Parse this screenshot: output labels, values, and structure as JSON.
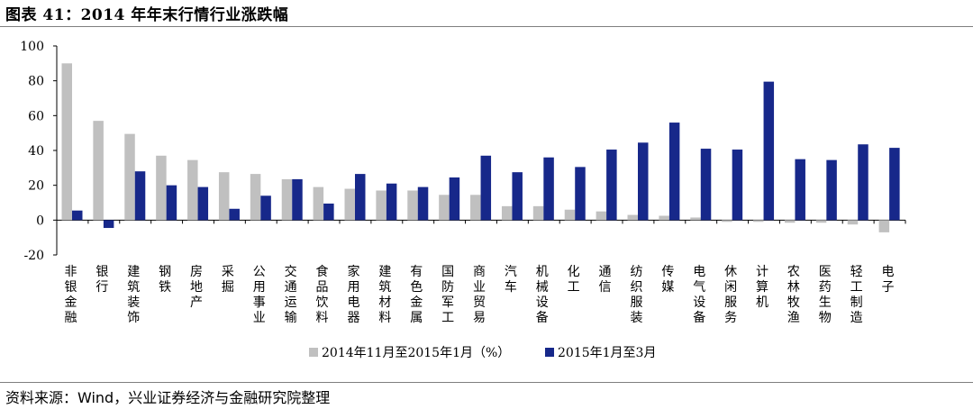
{
  "title": "图表 41：2014 年年末行情行业涨跌幅",
  "source": "资料来源：Wind，兴业证券经济与金融研究院整理",
  "colors": {
    "series1": "#c0c0c0",
    "series2": "#17288a",
    "axis": "#000000"
  },
  "chart_data": {
    "type": "bar",
    "ylim": [
      -20,
      100
    ],
    "yticks": [
      "100",
      "80",
      "60",
      "40",
      "20",
      "0",
      "-20"
    ],
    "ytick_values": [
      100,
      80,
      60,
      40,
      20,
      0,
      -20
    ],
    "grid": false,
    "legend_position": "bottom",
    "categories": [
      "非银金融",
      "银行",
      "建筑装饰",
      "钢铁",
      "房地产",
      "采掘",
      "公用事业",
      "交通运输",
      "食品饮料",
      "家用电器",
      "建筑材料",
      "有色金属",
      "国防军工",
      "商业贸易",
      "汽车",
      "机械设备",
      "化工",
      "通信",
      "纺织服装",
      "传媒",
      "电气设备",
      "休闲服务",
      "计算机",
      "农林牧渔",
      "医药生物",
      "轻工制造",
      "电子"
    ],
    "series": [
      {
        "name": "2014年11月至2015年1月（%）",
        "values": [
          90,
          57,
          49.5,
          37,
          34.5,
          27.5,
          26.5,
          23.5,
          19,
          18,
          17,
          17,
          14.5,
          14.5,
          8,
          8,
          6,
          5,
          3,
          2.5,
          1.5,
          -1,
          -1,
          -1.5,
          -1.5,
          -2.5,
          -7
        ]
      },
      {
        "name": "2015年1月至3月",
        "values": [
          5.5,
          -4.5,
          28,
          20,
          19,
          6.5,
          14,
          23.5,
          9.5,
          26.5,
          21,
          19,
          24.5,
          37,
          27.5,
          36,
          30.5,
          40.5,
          44.5,
          56,
          41,
          40.5,
          79.5,
          35,
          34.5,
          43.5,
          41.5
        ]
      }
    ]
  }
}
